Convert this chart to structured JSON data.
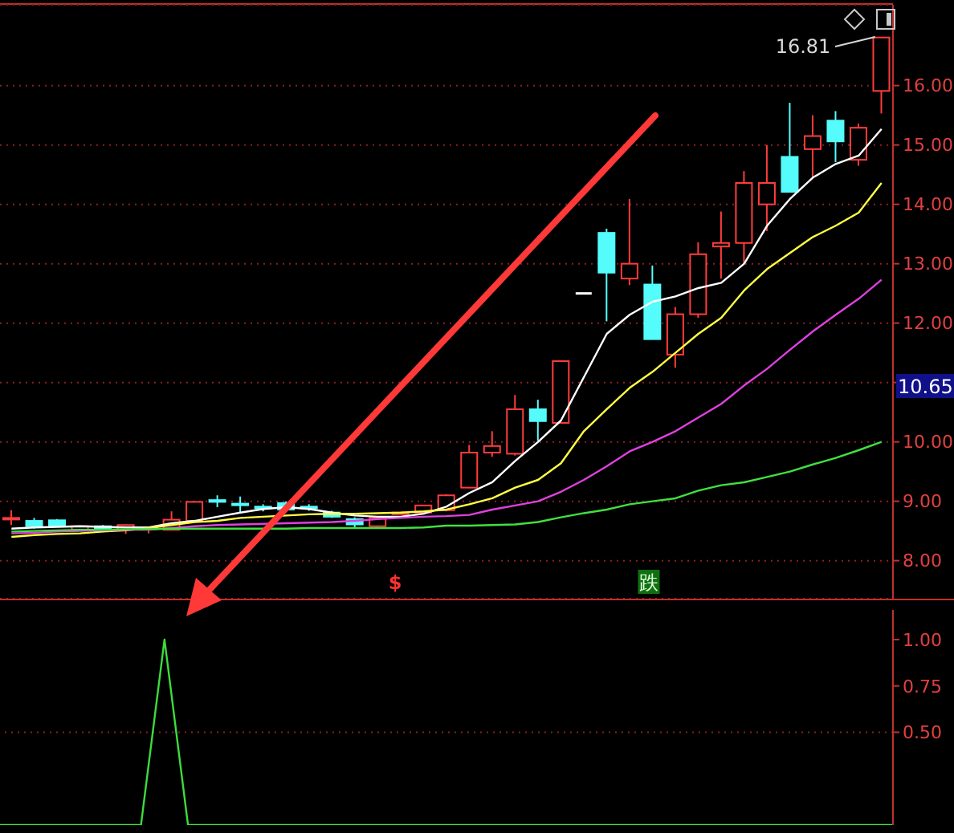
{
  "chart_data": [
    {
      "type": "candlestick",
      "categories": [
        null,
        null,
        null,
        null,
        null,
        null,
        null,
        null,
        null,
        null,
        null,
        null,
        null,
        null,
        null,
        null,
        null,
        null,
        null,
        null,
        null,
        null,
        null,
        null,
        null,
        null,
        null,
        null,
        null,
        null,
        null,
        null,
        null,
        null,
        null,
        null,
        null,
        null,
        null
      ],
      "ohlc": [
        [
          8.7,
          8.85,
          8.6,
          8.72
        ],
        [
          8.67,
          8.72,
          8.54,
          8.58
        ],
        [
          8.68,
          8.7,
          8.57,
          8.58
        ],
        [
          8.52,
          8.59,
          8.51,
          8.58
        ],
        [
          8.58,
          8.6,
          8.48,
          8.53
        ],
        [
          8.52,
          8.61,
          8.45,
          8.6
        ],
        [
          8.53,
          8.57,
          8.46,
          8.56
        ],
        [
          8.52,
          8.83,
          8.51,
          8.69
        ],
        [
          8.67,
          9.0,
          8.66,
          8.99
        ],
        [
          9.02,
          9.1,
          8.9,
          8.99
        ],
        [
          8.96,
          9.08,
          8.8,
          8.94
        ],
        [
          8.91,
          8.95,
          8.83,
          8.89
        ],
        [
          8.97,
          9.0,
          8.85,
          8.86
        ],
        [
          8.91,
          8.95,
          8.84,
          8.89
        ],
        [
          8.81,
          8.84,
          8.72,
          8.74
        ],
        [
          8.7,
          8.73,
          8.55,
          8.61
        ],
        [
          8.58,
          8.74,
          8.57,
          8.72
        ],
        [
          8.79,
          8.82,
          8.78,
          8.81
        ],
        [
          8.81,
          8.94,
          8.8,
          8.93
        ],
        [
          8.85,
          9.12,
          8.83,
          9.1
        ],
        [
          9.23,
          9.95,
          9.22,
          9.82
        ],
        [
          9.82,
          10.18,
          9.75,
          9.93
        ],
        [
          9.8,
          10.79,
          9.77,
          10.55
        ],
        [
          10.55,
          10.71,
          10.02,
          10.35
        ],
        [
          10.32,
          11.36,
          10.32,
          11.36
        ],
        [
          12.5,
          12.5,
          12.5,
          12.5
        ],
        [
          13.52,
          13.59,
          12.03,
          12.85
        ],
        [
          12.75,
          14.09,
          12.64,
          13.0
        ],
        [
          12.65,
          12.97,
          11.73,
          11.73
        ],
        [
          11.47,
          12.27,
          11.25,
          12.15
        ],
        [
          12.15,
          13.36,
          12.09,
          13.16
        ],
        [
          13.29,
          13.88,
          12.75,
          13.35
        ],
        [
          13.35,
          14.56,
          13.0,
          14.36
        ],
        [
          14.0,
          15.0,
          13.55,
          14.36
        ],
        [
          14.8,
          15.71,
          14.21,
          14.21
        ],
        [
          14.93,
          15.5,
          14.45,
          15.15
        ],
        [
          15.41,
          15.57,
          14.71,
          15.06
        ],
        [
          14.75,
          15.36,
          14.65,
          15.29
        ],
        [
          15.91,
          16.81,
          15.53,
          16.81
        ]
      ],
      "series": [
        {
          "type": "line",
          "color": "#ffffff",
          "values": [
            8.54,
            8.56,
            8.57,
            8.58,
            8.57,
            8.56,
            8.56,
            8.63,
            8.67,
            8.74,
            8.81,
            8.87,
            8.9,
            8.87,
            8.81,
            8.76,
            8.74,
            8.74,
            8.79,
            8.91,
            9.14,
            9.32,
            9.68,
            10.0,
            10.36,
            11.09,
            11.82,
            12.14,
            12.36,
            12.45,
            12.59,
            12.68,
            13.0,
            13.64,
            14.09,
            14.45,
            14.68,
            14.82,
            15.27
          ]
        },
        {
          "type": "line",
          "color": "#ffff44",
          "values": [
            8.4,
            8.43,
            8.45,
            8.46,
            8.49,
            8.51,
            8.55,
            8.6,
            8.65,
            8.67,
            8.72,
            8.74,
            8.76,
            8.78,
            8.79,
            8.79,
            8.8,
            8.81,
            8.83,
            8.86,
            8.95,
            9.05,
            9.23,
            9.36,
            9.64,
            10.18,
            10.55,
            10.91,
            11.18,
            11.5,
            11.82,
            12.09,
            12.55,
            12.91,
            13.18,
            13.45,
            13.64,
            13.86,
            14.36
          ]
        },
        {
          "type": "line",
          "color": "#e040e0",
          "values": [
            8.46,
            8.47,
            8.49,
            8.5,
            8.51,
            8.52,
            8.52,
            8.55,
            8.58,
            8.6,
            8.61,
            8.62,
            8.63,
            8.64,
            8.65,
            8.67,
            8.7,
            8.72,
            8.74,
            8.75,
            8.77,
            8.86,
            8.93,
            9.0,
            9.16,
            9.36,
            9.59,
            9.84,
            10.0,
            10.18,
            10.41,
            10.64,
            10.95,
            11.23,
            11.55,
            11.86,
            12.14,
            12.41,
            12.73
          ]
        },
        {
          "type": "line",
          "color": "#40e040",
          "values": [
            8.49,
            8.5,
            8.51,
            8.52,
            8.52,
            8.53,
            8.53,
            8.54,
            8.54,
            8.54,
            8.54,
            8.54,
            8.54,
            8.55,
            8.55,
            8.55,
            8.55,
            8.55,
            8.56,
            8.59,
            8.59,
            8.6,
            8.61,
            8.65,
            8.73,
            8.8,
            8.86,
            8.95,
            9.0,
            9.05,
            9.18,
            9.27,
            9.32,
            9.41,
            9.5,
            9.62,
            9.73,
            9.86,
            10.0
          ]
        }
      ],
      "ylim": [
        7.36,
        17.36
      ],
      "yticks": [
        {
          "value": 8,
          "label": "8.00"
        },
        {
          "value": 9,
          "label": "9.00"
        },
        {
          "value": 10,
          "label": "10.00"
        },
        {
          "value": 11,
          "label": null
        },
        {
          "value": 12,
          "label": "12.00"
        },
        {
          "value": 13,
          "label": "13.00"
        },
        {
          "value": 14,
          "label": "14.00"
        },
        {
          "value": 15,
          "label": "15.00"
        },
        {
          "value": 16,
          "label": "16.00"
        }
      ],
      "grid": "y",
      "tick_labels": "y",
      "annotations": [
        "16.81",
        "10.65",
        "$",
        "跌"
      ]
    },
    {
      "type": "line",
      "categories": [
        null,
        null,
        null,
        null,
        null,
        null,
        null,
        null,
        null,
        null,
        null,
        null,
        null,
        null,
        null,
        null,
        null,
        null,
        null,
        null,
        null,
        null,
        null,
        null,
        null,
        null,
        null,
        null,
        null,
        null,
        null,
        null,
        null,
        null,
        null,
        null,
        null,
        null,
        null
      ],
      "series": [
        {
          "color": "#3cdc3c",
          "values": [
            0,
            0,
            0,
            0,
            0,
            0,
            0,
            1,
            0,
            0,
            0,
            0,
            0,
            0,
            0,
            0,
            0,
            0,
            0,
            0,
            0,
            0,
            0,
            0,
            0,
            0,
            0,
            0,
            0,
            0,
            0,
            0,
            0,
            0,
            0,
            0,
            0,
            0,
            0
          ]
        }
      ],
      "ylim": [
        0,
        1.16
      ],
      "yticks": [
        {
          "value": 0.5,
          "label": "0.50"
        },
        {
          "value": 0.75,
          "label": "0.75"
        },
        {
          "value": 1,
          "label": "1.00"
        }
      ],
      "ref_lines": [
        {
          "axis": "y",
          "value": 0.5,
          "line_style": "dotted"
        }
      ],
      "tick_labels": "y"
    }
  ]
}
